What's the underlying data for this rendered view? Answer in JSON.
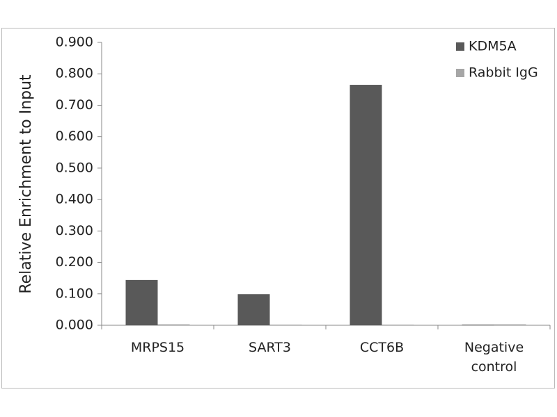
{
  "chart_data": {
    "type": "bar",
    "y_label": "Relative Enrichment to Input",
    "categories": [
      "MRPS15",
      "SART3",
      "CCT6B",
      "Negative control"
    ],
    "series": [
      {
        "name": "KDM5A",
        "color": "#595959",
        "values": [
          0.144,
          0.099,
          0.765,
          0.002
        ]
      },
      {
        "name": "Rabbit IgG",
        "color": "#a6a6a6",
        "values": [
          0.003,
          0.002,
          0.002,
          0.003
        ]
      }
    ],
    "ylim": [
      0,
      0.9
    ],
    "yticks": [
      {
        "value": 0,
        "label": "0.000"
      },
      {
        "value": 0.1,
        "label": "0.100"
      },
      {
        "value": 0.2,
        "label": "0.200"
      },
      {
        "value": 0.3,
        "label": "0.300"
      },
      {
        "value": 0.4,
        "label": "0.400"
      },
      {
        "value": 0.5,
        "label": "0.500"
      },
      {
        "value": 0.6,
        "label": "0.600"
      },
      {
        "value": 0.7,
        "label": "0.700"
      },
      {
        "value": 0.8,
        "label": "0.800"
      },
      {
        "value": 0.9,
        "label": "0.900"
      }
    ],
    "grid": false,
    "legend": "top-right"
  }
}
